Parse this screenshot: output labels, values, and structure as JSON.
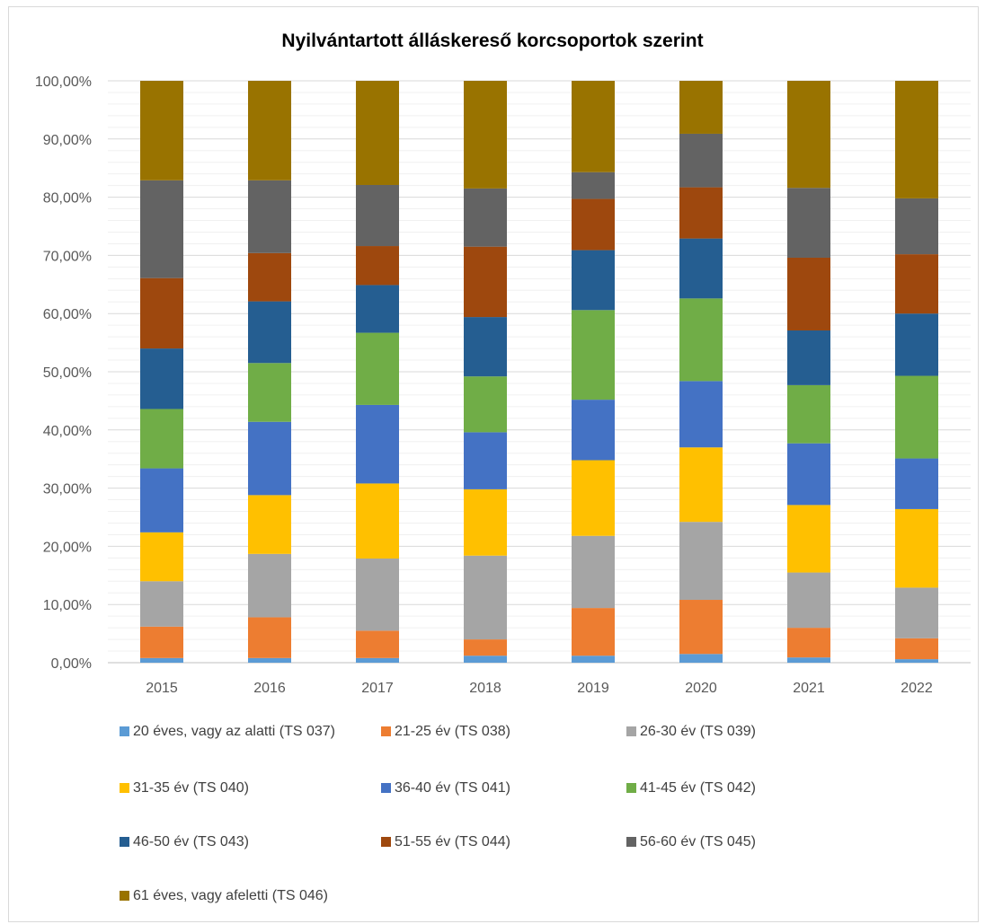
{
  "chart_data": {
    "type": "bar",
    "stacked": true,
    "title": "Nyilvántartott álláskereső korcsoportok szerint",
    "categories": [
      "2015",
      "2016",
      "2017",
      "2018",
      "2019",
      "2020",
      "2021",
      "2022"
    ],
    "y_ticks": [
      "0,00%",
      "10,00%",
      "20,00%",
      "30,00%",
      "40,00%",
      "50,00%",
      "60,00%",
      "70,00%",
      "80,00%",
      "90,00%",
      "100,00%"
    ],
    "ylim": [
      0,
      100
    ],
    "grid": true,
    "legend_position": "bottom",
    "series": [
      {
        "name": "20 éves, vagy az alatti (TS 037)",
        "color": "#5B9BD5",
        "values": [
          0.8,
          0.8,
          0.8,
          1.2,
          1.2,
          1.5,
          0.9,
          0.6
        ]
      },
      {
        "name": "21-25 év (TS 038)",
        "color": "#ED7D31",
        "values": [
          5.4,
          7.0,
          4.7,
          2.8,
          8.2,
          9.3,
          5.1,
          3.6
        ]
      },
      {
        "name": "26-30 év (TS 039)",
        "color": "#A5A5A5",
        "values": [
          7.8,
          10.9,
          12.4,
          14.4,
          12.4,
          13.4,
          9.5,
          8.7
        ]
      },
      {
        "name": "31-35 év (TS 040)",
        "color": "#FFC000",
        "values": [
          8.4,
          10.1,
          12.9,
          11.4,
          13.0,
          12.8,
          11.6,
          13.5
        ]
      },
      {
        "name": "36-40 év (TS 041)",
        "color": "#4472C4",
        "values": [
          11.0,
          12.6,
          13.5,
          9.8,
          10.4,
          11.4,
          10.6,
          8.7
        ]
      },
      {
        "name": "41-45 év (TS 042)",
        "color": "#70AD47",
        "values": [
          10.2,
          10.1,
          12.4,
          9.6,
          15.4,
          14.2,
          10.0,
          14.2
        ]
      },
      {
        "name": "46-50 év (TS 043)",
        "color": "#255E91",
        "values": [
          10.4,
          10.6,
          8.2,
          10.2,
          10.3,
          10.3,
          9.4,
          10.7
        ]
      },
      {
        "name": "51-55 év (TS 044)",
        "color": "#9E480E",
        "values": [
          12.1,
          8.3,
          6.7,
          12.1,
          8.8,
          8.8,
          12.5,
          10.2
        ]
      },
      {
        "name": "56-60 év (TS 045)",
        "color": "#636363",
        "values": [
          16.8,
          12.5,
          10.5,
          10.0,
          4.6,
          9.2,
          12.0,
          9.6
        ]
      },
      {
        "name": "61 éves, vagy afeletti (TS 046)",
        "color": "#997300",
        "values": [
          17.1,
          17.1,
          17.9,
          18.5,
          15.7,
          9.1,
          18.4,
          20.2
        ]
      }
    ]
  }
}
